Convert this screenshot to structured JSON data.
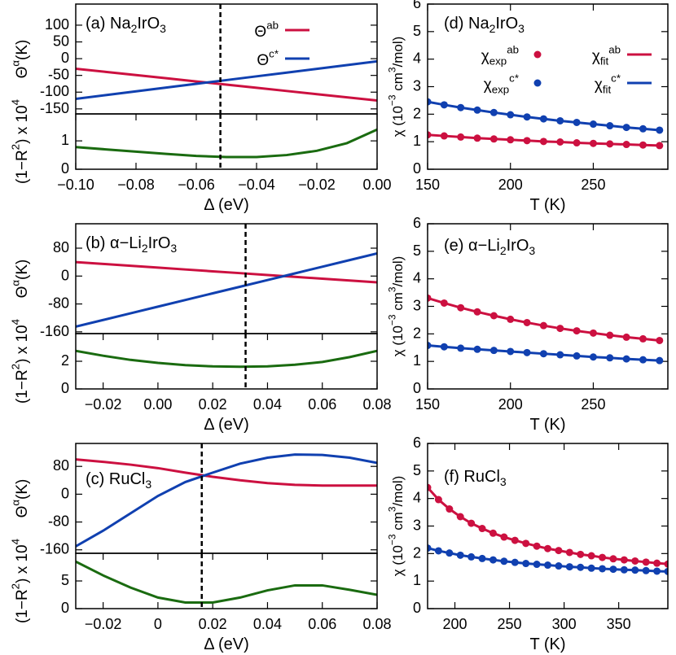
{
  "chart_data": [
    {
      "type": "line",
      "label": "(a) Na_{2}IrO_{3}",
      "ylabel": "Θ^{α}(K)",
      "xlim": [
        -0.1,
        0
      ],
      "ylim": [
        -165,
        163
      ],
      "yticks": [
        100,
        50,
        0,
        -50,
        -100,
        -150
      ],
      "vline": -0.052,
      "legend": "top-right",
      "x": [
        -0.1,
        -0.09,
        -0.08,
        -0.07,
        -0.06,
        -0.05,
        -0.04,
        -0.03,
        -0.02,
        -0.01,
        0
      ],
      "series": [
        {
          "name": "Θ^{ab}",
          "color": "#cc1040",
          "values": [
            -30,
            -39.5,
            -49,
            -58.5,
            -68,
            -77.5,
            -87,
            -96.5,
            -106,
            -115.5,
            -125
          ]
        },
        {
          "name": "Θ^{c*}",
          "color": "#1040b0",
          "values": [
            -120,
            -108.8,
            -97.6,
            -86.4,
            -75.2,
            -64,
            -52.8,
            -41.6,
            -30.4,
            -19.2,
            -8
          ]
        }
      ]
    },
    {
      "type": "line",
      "ylabel": "(1−R^{2}) x 10^{4}",
      "xlabel": "Δ (eV)",
      "xlim": [
        -0.1,
        0
      ],
      "ylim": [
        0,
        1.95
      ],
      "yticks": [
        0,
        1
      ],
      "vline": -0.052,
      "xticks": [
        {
          "value": -0.1,
          "label": "−0.10"
        },
        {
          "value": -0.08,
          "label": "−0.08"
        },
        {
          "value": -0.06,
          "label": "−0.06"
        },
        {
          "value": -0.04,
          "label": "−0.04"
        },
        {
          "value": -0.02,
          "label": "−0.02"
        },
        {
          "value": 0,
          "label": "0.00"
        }
      ],
      "x": [
        -0.1,
        -0.09,
        -0.08,
        -0.07,
        -0.06,
        -0.05,
        -0.04,
        -0.03,
        -0.02,
        -0.01,
        0
      ],
      "series": [
        {
          "color": "#1a6b10",
          "values": [
            0.78,
            0.7,
            0.62,
            0.54,
            0.47,
            0.43,
            0.43,
            0.5,
            0.65,
            0.92,
            1.4
          ]
        }
      ]
    },
    {
      "type": "line",
      "label": "(b) α−Li_{2}IrO_{3}",
      "ylabel": "Θ^{α}(K)",
      "xlim": [
        -0.03,
        0.08
      ],
      "ylim": [
        -165,
        150
      ],
      "yticks": [
        80,
        0,
        -80,
        -160
      ],
      "vline": 0.032,
      "x": [
        -0.03,
        -0.02,
        -0.01,
        0,
        0.01,
        0.02,
        0.03,
        0.04,
        0.05,
        0.06,
        0.07,
        0.08
      ],
      "series": [
        {
          "color": "#cc1040",
          "values": [
            40,
            34.7,
            29.5,
            24.2,
            18.9,
            13.6,
            8.4,
            3.1,
            -2.2,
            -7.5,
            -12.7,
            -18
          ]
        },
        {
          "color": "#1040b0",
          "values": [
            -145,
            -125.9,
            -106.8,
            -87.7,
            -68.6,
            -49.5,
            -30.5,
            -11.4,
            7.7,
            26.8,
            45.9,
            65
          ]
        }
      ]
    },
    {
      "type": "line",
      "ylabel": "(1−R^{2}) x 10^{4}",
      "xlabel": "Δ (eV)",
      "xlim": [
        -0.03,
        0.08
      ],
      "ylim": [
        0,
        4
      ],
      "yticks": [
        0,
        2
      ],
      "vline": 0.032,
      "xticks": [
        {
          "value": -0.02,
          "label": "−0.02"
        },
        {
          "value": 0,
          "label": "0.00"
        },
        0.02,
        0.04,
        0.06,
        0.08
      ],
      "x": [
        -0.03,
        -0.02,
        -0.01,
        0,
        0.01,
        0.02,
        0.03,
        0.04,
        0.05,
        0.06,
        0.07,
        0.08
      ],
      "series": [
        {
          "color": "#1a6b10",
          "values": [
            2.75,
            2.4,
            2.1,
            1.88,
            1.72,
            1.63,
            1.6,
            1.63,
            1.75,
            1.95,
            2.3,
            2.75
          ]
        }
      ]
    },
    {
      "type": "line",
      "label": "(c) RuCl_{3}",
      "ylabel": "Θ^{α}(K)",
      "xlim": [
        -0.03,
        0.08
      ],
      "ylim": [
        -170,
        146
      ],
      "yticks": [
        80,
        0,
        -80,
        -160
      ],
      "vline": 0.016,
      "x": [
        -0.03,
        -0.02,
        -0.01,
        0,
        0.01,
        0.02,
        0.03,
        0.04,
        0.05,
        0.06,
        0.07,
        0.08
      ],
      "series": [
        {
          "color": "#cc1040",
          "values": [
            100,
            93,
            85,
            75,
            62,
            50,
            40,
            32,
            27,
            25,
            25,
            25
          ]
        },
        {
          "color": "#1040b0",
          "values": [
            -150,
            -105,
            -55,
            -5,
            35,
            62,
            88,
            105,
            114,
            113,
            105,
            90
          ]
        }
      ]
    },
    {
      "type": "line",
      "ylabel": "(1−R^{2}) x 10^{4}",
      "xlabel": "Δ (eV)",
      "xlim": [
        -0.03,
        0.08
      ],
      "ylim": [
        0,
        10
      ],
      "yticks": [
        0,
        5
      ],
      "vline": 0.016,
      "xticks": [
        {
          "value": -0.02,
          "label": "−0.02"
        },
        {
          "value": 0,
          "label": "0"
        },
        0.02,
        0.04,
        0.06,
        0.08
      ],
      "x": [
        -0.03,
        -0.02,
        -0.01,
        0,
        0.01,
        0.02,
        0.03,
        0.04,
        0.05,
        0.06,
        0.07,
        0.08
      ],
      "series": [
        {
          "color": "#1a6b10",
          "values": [
            8.5,
            6.0,
            3.8,
            2.0,
            1.1,
            1.1,
            2.0,
            3.3,
            4.2,
            4.2,
            3.4,
            2.5
          ]
        }
      ]
    },
    {
      "type": "scatter",
      "label": "(d) Na_{2}IrO_{3}",
      "ylabel": "χ (10^{−3} cm^{3}/mol)",
      "xlabel": "T (K)",
      "xlim": [
        150,
        295
      ],
      "ylim": [
        0,
        6
      ],
      "xticks": [
        150,
        200,
        250
      ],
      "yticks": [
        0,
        1,
        2,
        3,
        4,
        5,
        6
      ],
      "legend": "top-right",
      "legend_columns": 2,
      "x": [
        150,
        160,
        170,
        180,
        190,
        200,
        210,
        220,
        230,
        240,
        250,
        260,
        270,
        280,
        290
      ],
      "series": [
        {
          "name": "χ_{exp}^{ab}",
          "mode": "markers",
          "color": "#cc1040",
          "values": [
            1.25,
            1.21,
            1.17,
            1.13,
            1.1,
            1.07,
            1.04,
            1.01,
            0.99,
            0.96,
            0.94,
            0.92,
            0.9,
            0.88,
            0.86
          ]
        },
        {
          "name": "χ_{fit}^{ab}",
          "mode": "lines",
          "color": "#cc1040",
          "values": [
            1.25,
            1.21,
            1.17,
            1.13,
            1.1,
            1.07,
            1.04,
            1.01,
            0.99,
            0.96,
            0.94,
            0.92,
            0.9,
            0.88,
            0.86
          ]
        },
        {
          "name": "χ_{exp}^{c*}",
          "mode": "markers",
          "color": "#1040b0",
          "values": [
            2.45,
            2.34,
            2.24,
            2.15,
            2.06,
            1.98,
            1.9,
            1.83,
            1.76,
            1.7,
            1.64,
            1.58,
            1.52,
            1.47,
            1.42
          ]
        },
        {
          "name": "χ_{fit}^{c*}",
          "mode": "lines",
          "color": "#1040b0",
          "values": [
            2.45,
            2.34,
            2.24,
            2.15,
            2.06,
            1.98,
            1.9,
            1.83,
            1.76,
            1.7,
            1.64,
            1.58,
            1.52,
            1.47,
            1.42
          ]
        }
      ]
    },
    {
      "type": "scatter",
      "label": "(e) α−Li_{2}IrO_{3}",
      "ylabel": "χ (10^{−3} cm^{3}/mol)",
      "xlabel": "T (K)",
      "xlim": [
        150,
        295
      ],
      "ylim": [
        0,
        6
      ],
      "xticks": [
        150,
        200,
        250
      ],
      "yticks": [
        0,
        1,
        2,
        3,
        4,
        5,
        6
      ],
      "x": [
        150,
        160,
        170,
        180,
        190,
        200,
        210,
        220,
        230,
        240,
        250,
        260,
        270,
        280,
        290
      ],
      "series": [
        {
          "mode": "markers",
          "color": "#cc1040",
          "values": [
            3.3,
            3.12,
            2.95,
            2.8,
            2.66,
            2.53,
            2.41,
            2.3,
            2.2,
            2.11,
            2.03,
            1.95,
            1.88,
            1.82,
            1.76
          ]
        },
        {
          "mode": "lines",
          "color": "#cc1040",
          "values": [
            3.3,
            3.12,
            2.95,
            2.8,
            2.66,
            2.53,
            2.41,
            2.3,
            2.2,
            2.11,
            2.03,
            1.95,
            1.88,
            1.82,
            1.76
          ]
        },
        {
          "mode": "markers",
          "color": "#1040b0",
          "values": [
            1.58,
            1.53,
            1.48,
            1.44,
            1.4,
            1.36,
            1.32,
            1.28,
            1.24,
            1.2,
            1.16,
            1.13,
            1.09,
            1.06,
            1.03
          ]
        },
        {
          "mode": "lines",
          "color": "#1040b0",
          "values": [
            1.58,
            1.53,
            1.48,
            1.44,
            1.4,
            1.36,
            1.32,
            1.28,
            1.24,
            1.2,
            1.16,
            1.13,
            1.09,
            1.06,
            1.03
          ]
        }
      ]
    },
    {
      "type": "scatter",
      "label": "(f) RuCl_{3}",
      "ylabel": "χ (10^{−3} cm^{3}/mol)",
      "xlabel": "T (K)",
      "xlim": [
        175,
        395
      ],
      "ylim": [
        0,
        6
      ],
      "xticks": [
        200,
        250,
        300,
        350
      ],
      "yticks": [
        0,
        1,
        2,
        3,
        4,
        5,
        6
      ],
      "x": [
        175,
        185,
        195,
        205,
        215,
        225,
        235,
        245,
        255,
        265,
        275,
        285,
        295,
        305,
        315,
        325,
        335,
        345,
        355,
        365,
        375,
        385,
        395
      ],
      "series": [
        {
          "mode": "markers",
          "color": "#cc1040",
          "values": [
            4.4,
            3.96,
            3.62,
            3.34,
            3.1,
            2.91,
            2.74,
            2.6,
            2.48,
            2.37,
            2.27,
            2.18,
            2.11,
            2.04,
            1.97,
            1.92,
            1.86,
            1.81,
            1.77,
            1.73,
            1.69,
            1.65,
            1.62
          ]
        },
        {
          "mode": "lines",
          "color": "#cc1040",
          "values": [
            4.4,
            3.96,
            3.62,
            3.34,
            3.1,
            2.91,
            2.74,
            2.6,
            2.48,
            2.37,
            2.27,
            2.18,
            2.11,
            2.04,
            1.97,
            1.92,
            1.86,
            1.81,
            1.77,
            1.73,
            1.69,
            1.65,
            1.62
          ]
        },
        {
          "mode": "markers",
          "color": "#1040b0",
          "values": [
            2.2,
            2.1,
            2.02,
            1.94,
            1.88,
            1.82,
            1.77,
            1.72,
            1.68,
            1.64,
            1.61,
            1.58,
            1.55,
            1.52,
            1.5,
            1.47,
            1.45,
            1.43,
            1.41,
            1.4,
            1.38,
            1.36,
            1.35
          ]
        },
        {
          "mode": "lines",
          "color": "#1040b0",
          "values": [
            2.2,
            2.1,
            2.02,
            1.94,
            1.88,
            1.82,
            1.77,
            1.72,
            1.68,
            1.64,
            1.61,
            1.58,
            1.55,
            1.52,
            1.5,
            1.47,
            1.45,
            1.43,
            1.41,
            1.4,
            1.38,
            1.36,
            1.35
          ]
        }
      ]
    }
  ]
}
